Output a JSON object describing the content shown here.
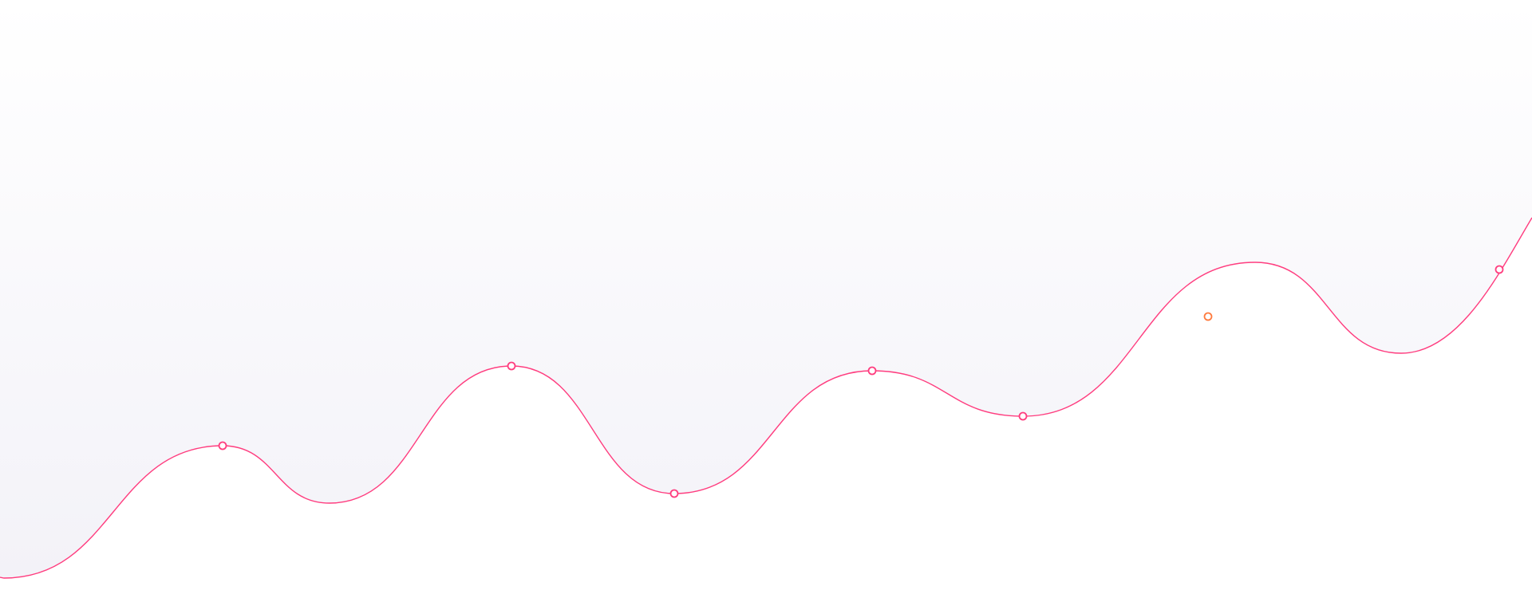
{
  "decoration": {
    "type": "wave-background",
    "colors": {
      "background": "#ffffff",
      "fill_top": "#ffffff",
      "fill_bottom": "#f3f2f8",
      "line": "#ff3d7f",
      "marker_primary": "#ff3d7f",
      "marker_accent": "#ff7a3d",
      "marker_fill": "#ffffff"
    },
    "markers": [
      {
        "style": "primary"
      },
      {
        "style": "primary"
      },
      {
        "style": "primary"
      },
      {
        "style": "primary"
      },
      {
        "style": "primary"
      },
      {
        "style": "accent"
      },
      {
        "style": "primary"
      }
    ]
  }
}
